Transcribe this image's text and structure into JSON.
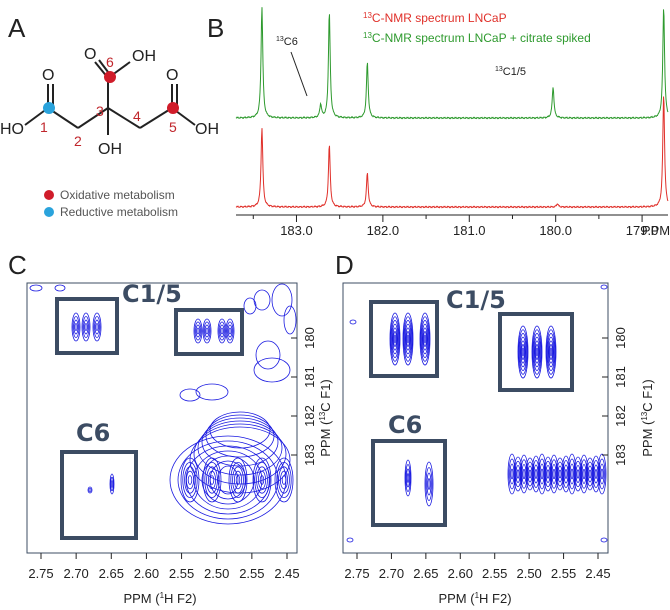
{
  "panels": {
    "a": "A",
    "b": "B",
    "c": "C",
    "d": "D"
  },
  "molecule": {
    "atoms": {
      "o_left": "O",
      "o_mid": "O",
      "o_right": "O",
      "oh_mid": "OH",
      "ho_left": "HO",
      "oh_right": "OH",
      "oh_center": "OH"
    },
    "numbers": [
      "1",
      "2",
      "3",
      "4",
      "5",
      "6"
    ],
    "legend": [
      {
        "label": "Oxidative metabolism",
        "color": "#d01c2a"
      },
      {
        "label": "Reductive metabolism",
        "color": "#2aa3dc"
      }
    ]
  },
  "spectrum": {
    "legend_red_sup": "13",
    "legend_red": "C-NMR spectrum LNCaP",
    "legend_green_sup": "13",
    "legend_green": "C-NMR spectrum LNCaP + citrate spiked",
    "ann_c6_sup": "13",
    "ann_c6": "C6",
    "ann_c15_sup": "13",
    "ann_c15": "C1/5",
    "x_ticks": [
      "183.0",
      "182.0",
      "181.0",
      "180.0",
      "179.0"
    ],
    "x_unit": "PPM",
    "colors": {
      "green": "#2e9a2e",
      "red": "#e0302a"
    }
  },
  "hsqc": {
    "x_ticks": [
      "2.75",
      "2.70",
      "2.65",
      "2.60",
      "2.55",
      "2.50",
      "2.55",
      "2.45"
    ],
    "x_label_pre": "PPM (",
    "x_label_sup": "1",
    "x_label_post": "H F2)",
    "y_ticks": [
      "180",
      "181",
      "182",
      "183"
    ],
    "y_label_pre": "PPM (",
    "y_label_sup": "13",
    "y_label_post": "C F1)",
    "box_c15": "C1/5",
    "box_c6": "C6",
    "contour_color": "#1a1ae0",
    "box_color": "#3c4c63"
  },
  "chart_data": {
    "type": "line",
    "x_range": [
      183.7,
      178.7
    ],
    "series": [
      {
        "peaks": [
          [
            183.4,
            1.0
          ],
          [
            182.62,
            0.95
          ],
          [
            182.18,
            0.5
          ],
          [
            180.03,
            0.28
          ],
          [
            178.75,
            1.0
          ],
          [
            182.72,
            0.12
          ]
        ]
      },
      {
        "peaks": [
          [
            183.4,
            0.7
          ],
          [
            182.62,
            0.55
          ],
          [
            182.18,
            0.3
          ],
          [
            179.98,
            0.03
          ],
          [
            178.75,
            1.0
          ]
        ]
      }
    ]
  }
}
